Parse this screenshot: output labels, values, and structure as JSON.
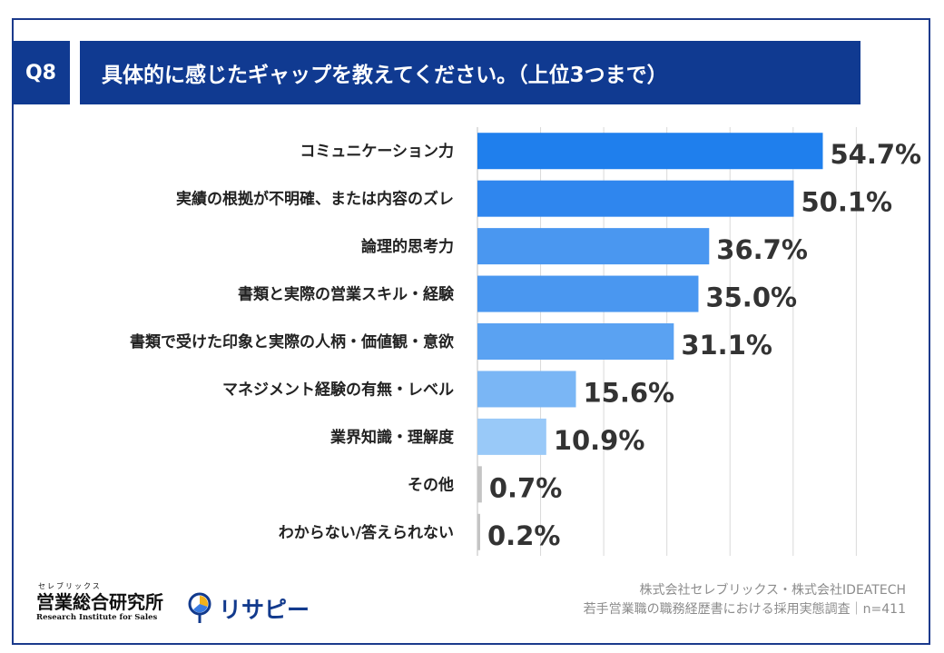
{
  "header": {
    "question_badge": "Q8",
    "title": "具体的に感じたギャップを教えてください。（上位3つまで）"
  },
  "chart_data": {
    "type": "bar",
    "orientation": "horizontal",
    "categories": [
      "コミュニケーション力",
      "実績の根拠が不明確、または内容のズレ",
      "論理的思考力",
      "書類と実際の営業スキル・経験",
      "書類で受けた印象と実際の人柄・価値観・意欲",
      "マネジメント経験の有無・レベル",
      "業界知識・理解度",
      "その他",
      "わからない/答えられない"
    ],
    "values": [
      54.7,
      50.1,
      36.7,
      35.0,
      31.1,
      15.6,
      10.9,
      0.7,
      0.2
    ],
    "value_labels": [
      "54.7%",
      "50.1%",
      "36.7%",
      "35.0%",
      "31.1%",
      "15.6%",
      "10.9%",
      "0.7%",
      "0.2%"
    ],
    "bar_colors": [
      "#1f7fed",
      "#2f86ee",
      "#4a97f0",
      "#4a97f0",
      "#5aa2f2",
      "#7ab6f5",
      "#99c9f8",
      "#c4c4c4",
      "#c4c4c4"
    ],
    "xlim": [
      0,
      60
    ],
    "grid": true,
    "legend": "none"
  },
  "footer": {
    "credit_line1": "株式会社セレブリックス・株式会社IDEATECH",
    "credit_line2": "若手営業職の職務経歴書における採用実態調査｜n=411",
    "logo1_kana": "セレブリックス",
    "logo1_name": "営業総合研究所",
    "logo1_en": "Research Institute for Sales",
    "logo2_name": "リサピー"
  },
  "colors": {
    "navy": "#103a91",
    "grid": "#d9d9d9",
    "label_text": "#222222",
    "value_text": "#333333"
  }
}
